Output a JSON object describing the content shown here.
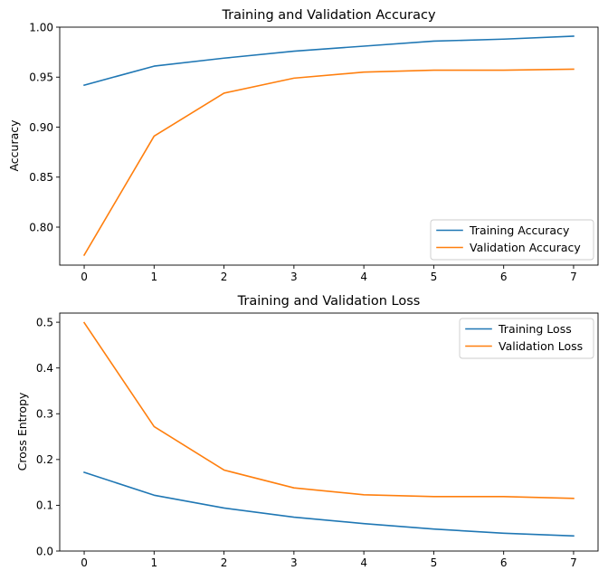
{
  "chart_data": [
    {
      "type": "line",
      "title": "Training and Validation Accuracy",
      "xlabel": "",
      "ylabel": "Accuracy",
      "x": [
        0,
        1,
        2,
        3,
        4,
        5,
        6,
        7
      ],
      "xticks": [
        "0",
        "1",
        "2",
        "3",
        "4",
        "5",
        "6",
        "7"
      ],
      "yticks": [
        "0.80",
        "0.85",
        "0.90",
        "0.95",
        "1.00"
      ],
      "xlim": [
        -0.35,
        7.35
      ],
      "ylim": [
        0.762,
        1.0
      ],
      "legend_position": "lower-right",
      "grid": false,
      "series": [
        {
          "name": "Training Accuracy",
          "color": "#1f77b4",
          "values": [
            0.942,
            0.961,
            0.969,
            0.976,
            0.981,
            0.986,
            0.988,
            0.991
          ]
        },
        {
          "name": "Validation Accuracy",
          "color": "#ff7f0e",
          "values": [
            0.772,
            0.891,
            0.934,
            0.949,
            0.955,
            0.957,
            0.957,
            0.958
          ]
        }
      ]
    },
    {
      "type": "line",
      "title": "Training and Validation Loss",
      "xlabel": "",
      "ylabel": "Cross Entropy",
      "x": [
        0,
        1,
        2,
        3,
        4,
        5,
        6,
        7
      ],
      "xticks": [
        "0",
        "1",
        "2",
        "3",
        "4",
        "5",
        "6",
        "7"
      ],
      "yticks": [
        "0.0",
        "0.1",
        "0.2",
        "0.3",
        "0.4",
        "0.5"
      ],
      "xlim": [
        -0.35,
        7.35
      ],
      "ylim": [
        0.0,
        0.52
      ],
      "legend_position": "upper-right",
      "grid": false,
      "series": [
        {
          "name": "Training Loss",
          "color": "#1f77b4",
          "values": [
            0.172,
            0.122,
            0.094,
            0.074,
            0.06,
            0.048,
            0.039,
            0.033
          ]
        },
        {
          "name": "Validation Loss",
          "color": "#ff7f0e",
          "values": [
            0.499,
            0.272,
            0.177,
            0.138,
            0.123,
            0.119,
            0.119,
            0.115
          ]
        }
      ]
    }
  ]
}
